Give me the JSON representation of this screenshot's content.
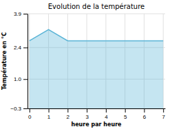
{
  "chart_data": {
    "type": "area",
    "title": "Evolution de la température",
    "xlabel": "heure par heure",
    "ylabel": "Température en °C",
    "x": [
      0,
      1,
      2,
      3,
      4,
      5,
      6,
      7
    ],
    "values": [
      2.7,
      3.2,
      2.7,
      2.7,
      2.7,
      2.7,
      2.7,
      2.7
    ],
    "color": "#5ab4d6",
    "xlim": [
      -0.1,
      7.1
    ],
    "ylim": [
      -0.3,
      3.9
    ],
    "xticks": [
      0,
      1,
      2,
      3,
      4,
      5,
      6,
      7
    ],
    "yticks": [
      {
        "value": -0.3,
        "label": "−0.3"
      },
      {
        "value": 1.0,
        "label": "1.0"
      },
      2.4,
      3.9
    ],
    "grid": true
  }
}
